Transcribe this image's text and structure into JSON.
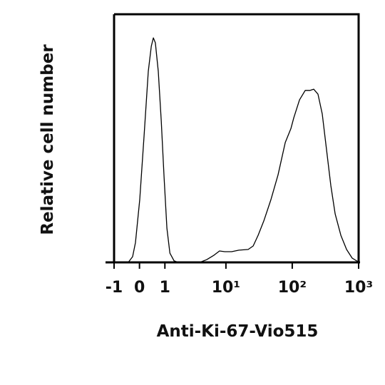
{
  "chart_data": {
    "type": "line",
    "xlabel": "Anti-Ki-67-Vio515",
    "ylabel": "Relative cell number",
    "xscale": "asinh",
    "xlim": [
      -1,
      1000
    ],
    "ylim": [
      0,
      100
    ],
    "xticks": [
      -1,
      0,
      1,
      {
        "value": 10,
        "label": "10¹"
      },
      {
        "value": 100,
        "label": "10²"
      },
      {
        "value": 1000,
        "label": "10³"
      }
    ],
    "color": "#000000",
    "x": [
      -0.4,
      -0.24,
      -0.14,
      0.01,
      0.16,
      0.31,
      0.42,
      0.5,
      0.58,
      0.7,
      0.83,
      0.96,
      1.1,
      1.26,
      1.51,
      1.79,
      3.97,
      5.1,
      6.6,
      8.0,
      9.6,
      12.2,
      15.7,
      21.7,
      25.8,
      30.6,
      37.3,
      47.8,
      61.2,
      78.4,
      95.6,
      105.5,
      128.6,
      156.7,
      186.3,
      210.7,
      244.5,
      283.5,
      329,
      381,
      443,
      540,
      658,
      801,
      977
    ],
    "values": [
      0,
      2.3,
      8,
      25.3,
      51.1,
      77,
      87.1,
      90.5,
      88.5,
      77,
      56.9,
      34.5,
      13.8,
      3.7,
      0.6,
      0,
      0,
      1.1,
      2.9,
      4.6,
      4.3,
      4.3,
      4.9,
      5.2,
      6.6,
      10.9,
      16.7,
      25.3,
      35.3,
      48.3,
      54,
      58.3,
      65.5,
      69.3,
      69.3,
      69.8,
      67.8,
      59.8,
      45.4,
      31,
      19.5,
      10.9,
      5.2,
      1.7,
      0.3
    ]
  }
}
